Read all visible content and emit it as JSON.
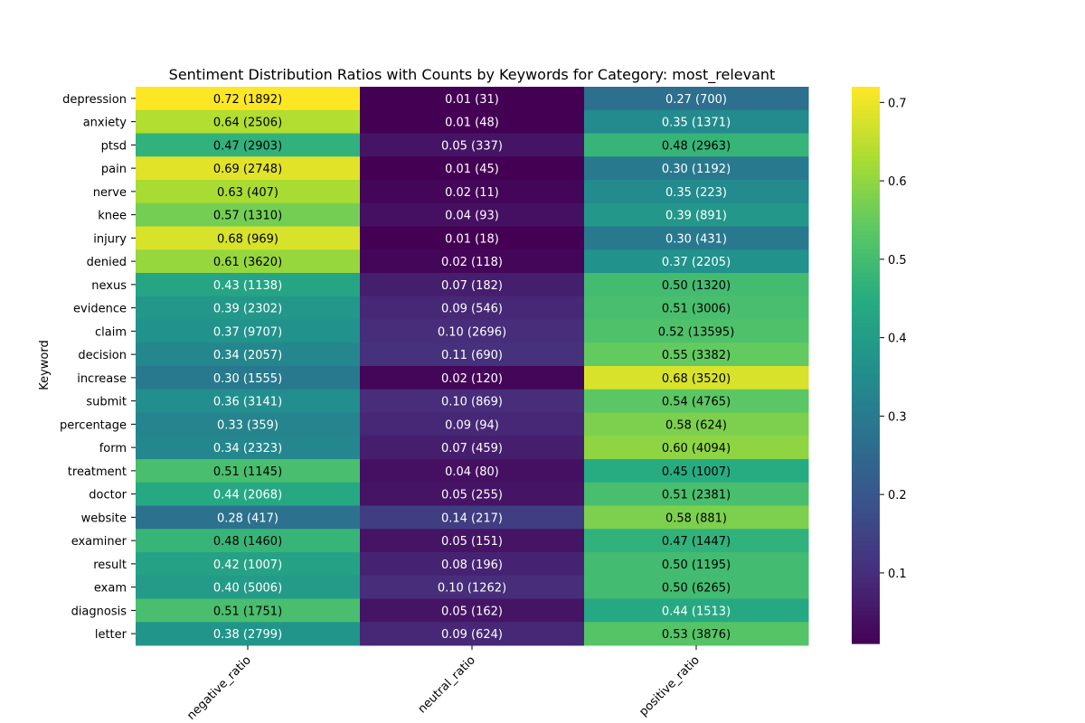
{
  "chart_data": {
    "type": "heatmap",
    "title": "Sentiment Distribution Ratios with Counts by Keywords for Category: most_relevant",
    "xlabel": "",
    "ylabel": "Keyword",
    "x_categories": [
      "negative_ratio",
      "neutral_ratio",
      "positive_ratio"
    ],
    "y_categories": [
      "depression",
      "anxiety",
      "ptsd",
      "pain",
      "nerve",
      "knee",
      "injury",
      "denied",
      "nexus",
      "evidence",
      "claim",
      "decision",
      "increase",
      "submit",
      "percentage",
      "form",
      "treatment",
      "doctor",
      "website",
      "examiner",
      "result",
      "exam",
      "diagnosis",
      "letter"
    ],
    "values": [
      [
        0.72,
        0.01,
        0.27
      ],
      [
        0.64,
        0.01,
        0.35
      ],
      [
        0.47,
        0.05,
        0.48
      ],
      [
        0.69,
        0.01,
        0.3
      ],
      [
        0.63,
        0.02,
        0.35
      ],
      [
        0.57,
        0.04,
        0.39
      ],
      [
        0.68,
        0.01,
        0.3
      ],
      [
        0.61,
        0.02,
        0.37
      ],
      [
        0.43,
        0.07,
        0.5
      ],
      [
        0.39,
        0.09,
        0.51
      ],
      [
        0.37,
        0.1,
        0.52
      ],
      [
        0.34,
        0.11,
        0.55
      ],
      [
        0.3,
        0.02,
        0.68
      ],
      [
        0.36,
        0.1,
        0.54
      ],
      [
        0.33,
        0.09,
        0.58
      ],
      [
        0.34,
        0.07,
        0.6
      ],
      [
        0.51,
        0.04,
        0.45
      ],
      [
        0.44,
        0.05,
        0.51
      ],
      [
        0.28,
        0.14,
        0.58
      ],
      [
        0.48,
        0.05,
        0.47
      ],
      [
        0.42,
        0.08,
        0.5
      ],
      [
        0.4,
        0.1,
        0.5
      ],
      [
        0.51,
        0.05,
        0.44
      ],
      [
        0.38,
        0.09,
        0.53
      ]
    ],
    "annotations": [
      [
        "0.72 (1892)",
        "0.01 (31)",
        "0.27 (700)"
      ],
      [
        "0.64 (2506)",
        "0.01 (48)",
        "0.35 (1371)"
      ],
      [
        "0.47 (2903)",
        "0.05 (337)",
        "0.48 (2963)"
      ],
      [
        "0.69 (2748)",
        "0.01 (45)",
        "0.30 (1192)"
      ],
      [
        "0.63 (407)",
        "0.02 (11)",
        "0.35 (223)"
      ],
      [
        "0.57 (1310)",
        "0.04 (93)",
        "0.39 (891)"
      ],
      [
        "0.68 (969)",
        "0.01 (18)",
        "0.30 (431)"
      ],
      [
        "0.61 (3620)",
        "0.02 (118)",
        "0.37 (2205)"
      ],
      [
        "0.43 (1138)",
        "0.07 (182)",
        "0.50 (1320)"
      ],
      [
        "0.39 (2302)",
        "0.09 (546)",
        "0.51 (3006)"
      ],
      [
        "0.37 (9707)",
        "0.10 (2696)",
        "0.52 (13595)"
      ],
      [
        "0.34 (2057)",
        "0.11 (690)",
        "0.55 (3382)"
      ],
      [
        "0.30 (1555)",
        "0.02 (120)",
        "0.68 (3520)"
      ],
      [
        "0.36 (3141)",
        "0.10 (869)",
        "0.54 (4765)"
      ],
      [
        "0.33 (359)",
        "0.09 (94)",
        "0.58 (624)"
      ],
      [
        "0.34 (2323)",
        "0.07 (459)",
        "0.60 (4094)"
      ],
      [
        "0.51 (1145)",
        "0.04 (80)",
        "0.45 (1007)"
      ],
      [
        "0.44 (2068)",
        "0.05 (255)",
        "0.51 (2381)"
      ],
      [
        "0.28 (417)",
        "0.14 (217)",
        "0.58 (881)"
      ],
      [
        "0.48 (1460)",
        "0.05 (151)",
        "0.47 (1447)"
      ],
      [
        "0.42 (1007)",
        "0.08 (196)",
        "0.50 (1195)"
      ],
      [
        "0.40 (5006)",
        "0.10 (1262)",
        "0.50 (6265)"
      ],
      [
        "0.51 (1751)",
        "0.05 (162)",
        "0.44 (1513)"
      ],
      [
        "0.38 (2799)",
        "0.09 (624)",
        "0.53 (3876)"
      ]
    ],
    "colormap": "viridis",
    "vmin": 0.01,
    "vmax": 0.72,
    "colorbar_ticks": [
      0.1,
      0.2,
      0.3,
      0.4,
      0.5,
      0.6,
      0.7
    ],
    "colorbar_tick_labels": [
      "0.1",
      "0.2",
      "0.3",
      "0.4",
      "0.5",
      "0.6",
      "0.7"
    ]
  }
}
